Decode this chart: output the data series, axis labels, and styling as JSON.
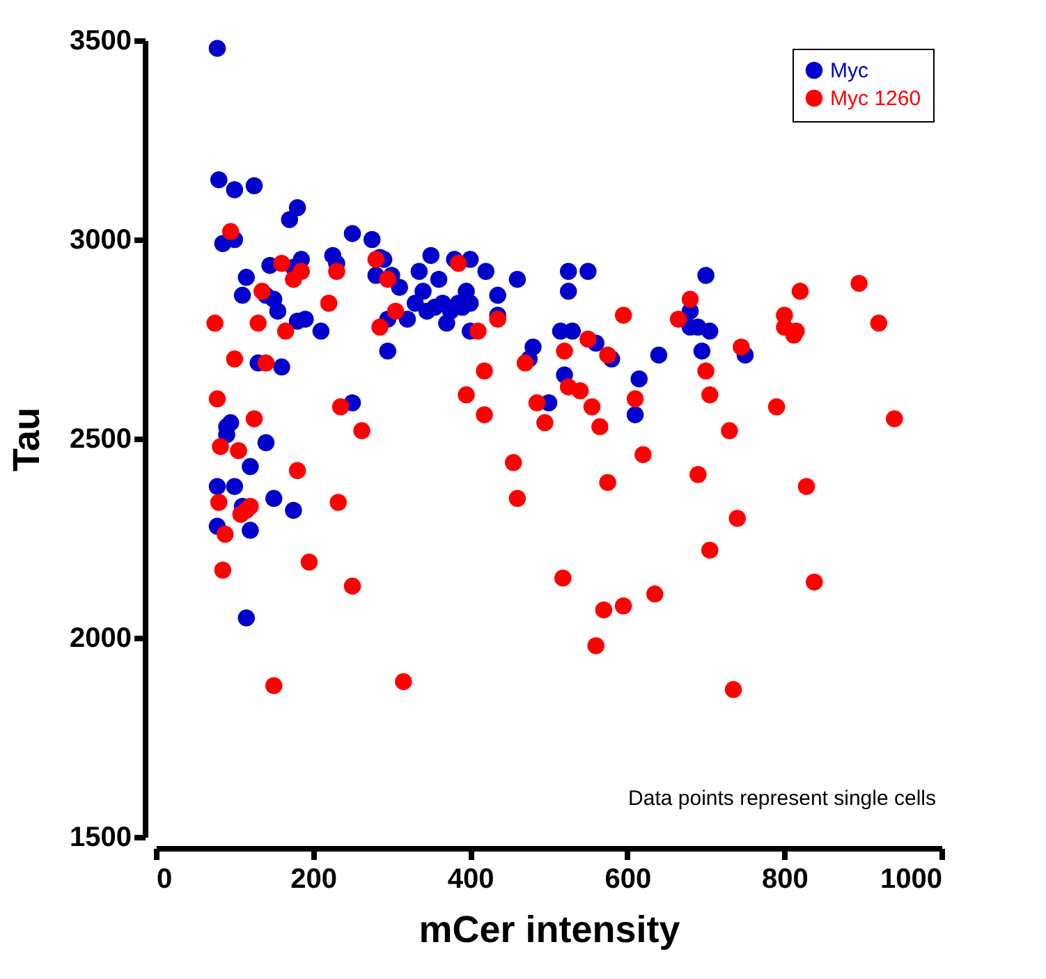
{
  "chart_data": {
    "type": "scatter",
    "xlabel": "mCer intensity",
    "ylabel": "Tau",
    "xlim": [
      0,
      1000
    ],
    "ylim": [
      1500,
      3500
    ],
    "xticks": [
      0,
      200,
      400,
      600,
      800,
      1000
    ],
    "yticks": [
      1500,
      2000,
      2500,
      3000,
      3500
    ],
    "legend": "top right",
    "marker": "circle",
    "annotations": [
      "Data points represent single cells"
    ],
    "series": [
      {
        "name": "Myc",
        "color": "#0000cc",
        "x": [
          78,
          80,
          85,
          100,
          100,
          125,
          110,
          115,
          130,
          140,
          145,
          150,
          155,
          160,
          170,
          180,
          175,
          185,
          180,
          190,
          210,
          225,
          230,
          250,
          275,
          280,
          285,
          290,
          295,
          295,
          300,
          310,
          320,
          330,
          335,
          340,
          345,
          350,
          355,
          360,
          365,
          370,
          375,
          380,
          385,
          390,
          395,
          400,
          400,
          400,
          420,
          435,
          435,
          460,
          475,
          480,
          500,
          515,
          520,
          525,
          525,
          530,
          550,
          560,
          580,
          610,
          615,
          640,
          680,
          680,
          690,
          695,
          700,
          705,
          750,
          78,
          78,
          90,
          95,
          90,
          100,
          110,
          115,
          120,
          120,
          140,
          150,
          175,
          250
        ],
        "values": [
          3480,
          3150,
          2990,
          3000,
          3125,
          3135,
          2860,
          2905,
          2690,
          2860,
          2935,
          2850,
          2820,
          2680,
          3050,
          3080,
          2930,
          2950,
          2795,
          2800,
          2770,
          2960,
          2940,
          3015,
          3000,
          2910,
          2955,
          2950,
          2720,
          2800,
          2910,
          2880,
          2800,
          2840,
          2920,
          2870,
          2820,
          2960,
          2830,
          2900,
          2840,
          2790,
          2820,
          2950,
          2840,
          2830,
          2870,
          2950,
          2840,
          2770,
          2920,
          2860,
          2810,
          2900,
          2700,
          2730,
          2590,
          2770,
          2660,
          2920,
          2870,
          2770,
          2920,
          2740,
          2700,
          2560,
          2650,
          2710,
          2820,
          2780,
          2780,
          2720,
          2910,
          2770,
          2710,
          2380,
          2280,
          2530,
          2540,
          2510,
          2380,
          2330,
          2050,
          2430,
          2270,
          2490,
          2350,
          2320,
          2590
        ]
      },
      {
        "name": "Myc 1260",
        "color": "#ff0000",
        "x": [
          75,
          78,
          80,
          82,
          85,
          88,
          95,
          100,
          105,
          108,
          115,
          120,
          125,
          130,
          135,
          140,
          150,
          160,
          165,
          175,
          180,
          185,
          195,
          220,
          230,
          232,
          235,
          250,
          262,
          280,
          285,
          295,
          305,
          315,
          385,
          395,
          410,
          418,
          418,
          435,
          455,
          460,
          470,
          485,
          495,
          518,
          520,
          525,
          540,
          550,
          555,
          560,
          565,
          570,
          575,
          575,
          595,
          595,
          610,
          620,
          635,
          665,
          680,
          690,
          700,
          705,
          705,
          730,
          735,
          740,
          745,
          790,
          800,
          800,
          812,
          815,
          820,
          828,
          838,
          895,
          920,
          940
        ],
        "values": [
          2790,
          2600,
          2340,
          2480,
          2170,
          2260,
          3020,
          2700,
          2470,
          2310,
          2320,
          2330,
          2550,
          2790,
          2870,
          2690,
          1880,
          2940,
          2770,
          2900,
          2420,
          2920,
          2190,
          2840,
          2920,
          2340,
          2580,
          2130,
          2520,
          2950,
          2780,
          2900,
          2820,
          1890,
          2940,
          2610,
          2770,
          2560,
          2670,
          2800,
          2440,
          2350,
          2690,
          2590,
          2540,
          2150,
          2720,
          2630,
          2620,
          2750,
          2580,
          1980,
          2530,
          2070,
          2390,
          2710,
          2080,
          2810,
          2600,
          2460,
          2110,
          2800,
          2850,
          2410,
          2670,
          2220,
          2610,
          2520,
          1870,
          2300,
          2730,
          2580,
          2810,
          2780,
          2760,
          2770,
          2870,
          2380,
          2140,
          2890,
          2790,
          2550
        ]
      }
    ]
  }
}
